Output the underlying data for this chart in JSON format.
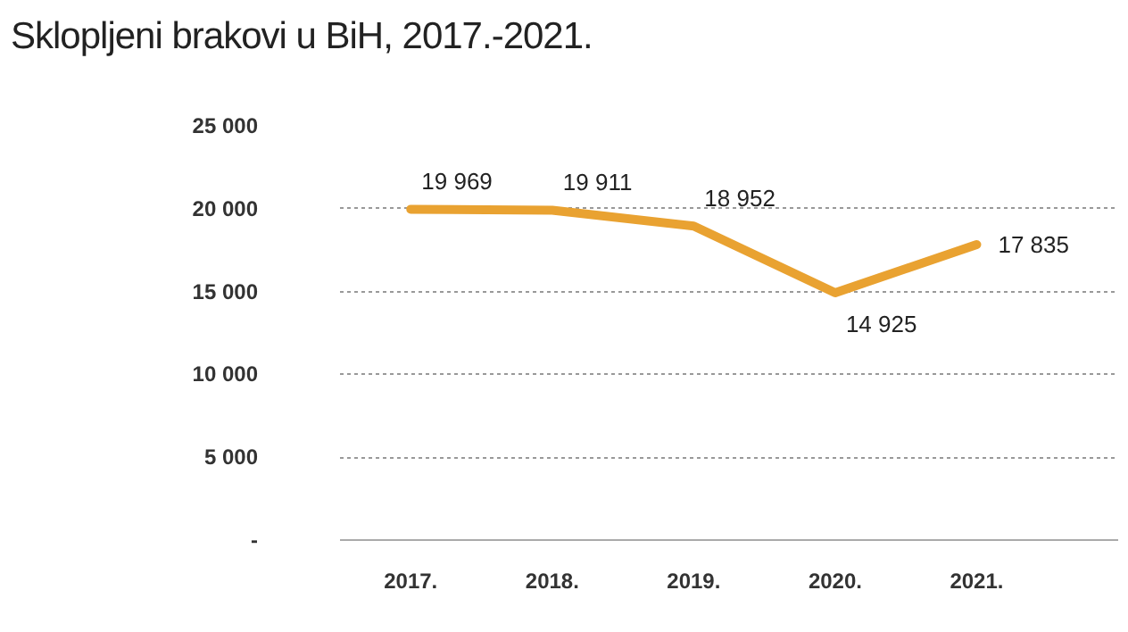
{
  "chart_data": {
    "type": "line",
    "title": "Sklopljeni brakovi u BiH, 2017.-2021.",
    "categories": [
      "2017.",
      "2018.",
      "2019.",
      "2020.",
      "2021."
    ],
    "series": [
      {
        "color": "#e9a231",
        "values": [
          19969,
          19911,
          18952,
          14925,
          17835
        ],
        "value_labels": [
          "19 969",
          "19 911",
          "18 952",
          "14 925",
          "17 835"
        ]
      }
    ],
    "ylim": [
      0,
      25000
    ],
    "yticks": [
      {
        "value": 0,
        "label": "-"
      },
      {
        "value": 5000,
        "label": "5 000"
      },
      {
        "value": 10000,
        "label": "10 000"
      },
      {
        "value": 15000,
        "label": "15 000"
      },
      {
        "value": 20000,
        "label": "20 000"
      },
      {
        "value": 25000,
        "label": "25 000"
      }
    ],
    "grid": "y",
    "marker": "none",
    "line_style": "solid"
  }
}
